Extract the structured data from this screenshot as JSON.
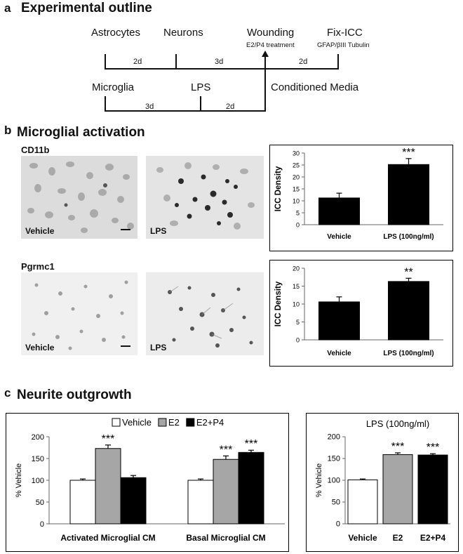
{
  "panel_a": {
    "letter": "a",
    "title": "Experimental outline",
    "top_labels": [
      "Astrocytes",
      "Neurons",
      "Wounding",
      "Fix-ICC"
    ],
    "treatment_note": "E2/P4 treatment",
    "stain_note": "GFAP/βIII Tubulin",
    "top_durations": [
      "2d",
      "3d",
      "2d"
    ],
    "bottom_labels": [
      "Microglia",
      "LPS",
      "Conditioned Media"
    ],
    "bottom_durations": [
      "3d",
      "2d"
    ]
  },
  "panel_b": {
    "letter": "b",
    "title": "Microglial activation",
    "rows": [
      {
        "marker": "CD11b",
        "left_label": "Vehicle",
        "right_label": "LPS"
      },
      {
        "marker": "Pgrmc1",
        "left_label": "Vehicle",
        "right_label": "LPS"
      }
    ]
  },
  "panel_c": {
    "letter": "c",
    "title": "Neurite outgrowth"
  },
  "chart_data": [
    {
      "type": "bar",
      "id": "cd11b",
      "categories": [
        "Vehicle",
        "LPS (100ng/ml)"
      ],
      "values": [
        11.2,
        25.2
      ],
      "errors": [
        2.0,
        2.5
      ],
      "significance": [
        "",
        "***"
      ],
      "ylabel": "ICC Density",
      "ylim": [
        0,
        30
      ],
      "yticks": [
        0,
        5,
        10,
        15,
        20,
        25,
        30
      ],
      "colors": [
        "#000000",
        "#000000"
      ]
    },
    {
      "type": "bar",
      "id": "pgrmc1",
      "categories": [
        "Vehicle",
        "LPS (100ng/ml)"
      ],
      "values": [
        10.6,
        16.3
      ],
      "errors": [
        1.4,
        0.9
      ],
      "significance": [
        "",
        "**"
      ],
      "ylabel": "ICC Density",
      "ylim": [
        0,
        20
      ],
      "yticks": [
        0,
        5,
        10,
        15,
        20
      ],
      "colors": [
        "#000000",
        "#000000"
      ]
    },
    {
      "type": "bar",
      "id": "neurite-grouped",
      "categories": [
        "Activated Microglial CM",
        "Basal Microglial CM"
      ],
      "series": [
        {
          "name": "Vehicle",
          "values": [
            100,
            100
          ],
          "errors": [
            3,
            3
          ],
          "significance": [
            "",
            ""
          ],
          "color": "#ffffff"
        },
        {
          "name": "E2",
          "values": [
            173,
            148
          ],
          "errors": [
            8,
            8
          ],
          "significance": [
            "***",
            "***"
          ],
          "color": "#a6a6a6"
        },
        {
          "name": "E2+P4",
          "values": [
            106,
            164
          ],
          "errors": [
            5,
            5
          ],
          "significance": [
            "",
            "***"
          ],
          "color": "#000000"
        }
      ],
      "ylabel": "% Vehicle",
      "ylim": [
        0,
        200
      ],
      "yticks": [
        0,
        50,
        100,
        150,
        200
      ],
      "legend_position": "top"
    },
    {
      "type": "bar",
      "id": "neurite-lps",
      "title": "LPS (100ng/ml)",
      "categories": [
        "Vehicle",
        "E2",
        "E2+P4"
      ],
      "values": [
        101,
        159,
        158
      ],
      "errors": [
        2,
        4,
        3
      ],
      "significance": [
        "",
        "***",
        "***"
      ],
      "colors": [
        "#ffffff",
        "#a6a6a6",
        "#000000"
      ],
      "ylabel": "% Vehicle",
      "ylim": [
        0,
        200
      ],
      "yticks": [
        0,
        50,
        100,
        150,
        200
      ]
    }
  ]
}
